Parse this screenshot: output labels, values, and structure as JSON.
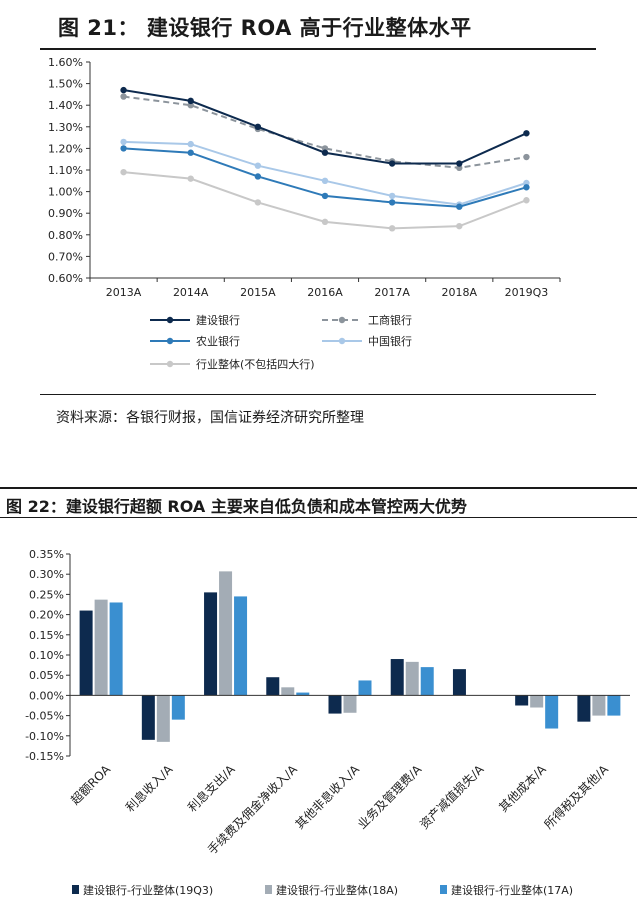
{
  "figure1": {
    "title": "图 21：  建设银行 ROA 高于行业整体水平",
    "source": "资料来源：各银行财报，国信证券经济研究所整理"
  },
  "figure2": {
    "title": "图 22：建设银行超额 ROA 主要来自低负债和成本管控两大优势"
  },
  "chart_data": [
    {
      "type": "line",
      "title": "建设银行 ROA 高于行业整体水平",
      "x": [
        "2013A",
        "2014A",
        "2015A",
        "2016A",
        "2017A",
        "2018A",
        "2019Q3"
      ],
      "ylim": [
        0.6,
        1.6
      ],
      "yticks": [
        "0.60%",
        "0.70%",
        "0.80%",
        "0.90%",
        "1.00%",
        "1.10%",
        "1.20%",
        "1.30%",
        "1.40%",
        "1.50%",
        "1.60%"
      ],
      "legend_position": "bottom",
      "series": [
        {
          "name": "建设银行",
          "values": [
            1.47,
            1.42,
            1.3,
            1.18,
            1.13,
            1.13,
            1.27
          ],
          "color": "#0d2a4e",
          "dashed": false
        },
        {
          "name": "工商银行",
          "values": [
            1.44,
            1.4,
            1.29,
            1.2,
            1.14,
            1.11,
            1.16
          ],
          "color": "#8c949c",
          "dashed": true
        },
        {
          "name": "农业银行",
          "values": [
            1.2,
            1.18,
            1.07,
            0.98,
            0.95,
            0.93,
            1.02
          ],
          "color": "#2e7ab8",
          "dashed": false
        },
        {
          "name": "中国银行",
          "values": [
            1.23,
            1.22,
            1.12,
            1.05,
            0.98,
            0.94,
            1.04
          ],
          "color": "#a9c8e8",
          "dashed": false
        },
        {
          "name": "行业整体(不包括四大行)",
          "values": [
            1.09,
            1.06,
            0.95,
            0.86,
            0.83,
            0.84,
            0.96
          ],
          "color": "#c8c8c8",
          "dashed": false
        }
      ]
    },
    {
      "type": "bar",
      "title": "建设银行超额 ROA 主要来自低负债和成本管控两大优势",
      "categories": [
        "超额ROA",
        "利息收入/A",
        "利息支出/A",
        "手续费及佣金净收入/A",
        "其他非息收入/A",
        "业务及管理费/A",
        "资产减值损失/A",
        "其他成本/A",
        "所得税及其他/A"
      ],
      "ylim": [
        -0.15,
        0.35
      ],
      "yticks": [
        "-0.15%",
        "-0.10%",
        "-0.05%",
        "0.00%",
        "0.05%",
        "0.10%",
        "0.15%",
        "0.20%",
        "0.25%",
        "0.30%",
        "0.35%"
      ],
      "legend_position": "bottom",
      "series": [
        {
          "name": "建设银行-行业整体(19Q3)",
          "values": [
            0.21,
            -0.11,
            0.255,
            0.045,
            -0.045,
            0.09,
            0.065,
            -0.025,
            -0.065
          ],
          "color": "#0d2a4e"
        },
        {
          "name": "建设银行-行业整体(18A)",
          "values": [
            0.237,
            -0.115,
            0.307,
            0.02,
            -0.043,
            0.083,
            0.0,
            -0.03,
            -0.05
          ],
          "color": "#a3acb5"
        },
        {
          "name": "建设银行-行业整体(17A)",
          "values": [
            0.23,
            -0.06,
            0.245,
            0.007,
            0.037,
            0.07,
            0.0,
            -0.082,
            -0.05
          ],
          "color": "#3a8fd0"
        }
      ]
    }
  ]
}
